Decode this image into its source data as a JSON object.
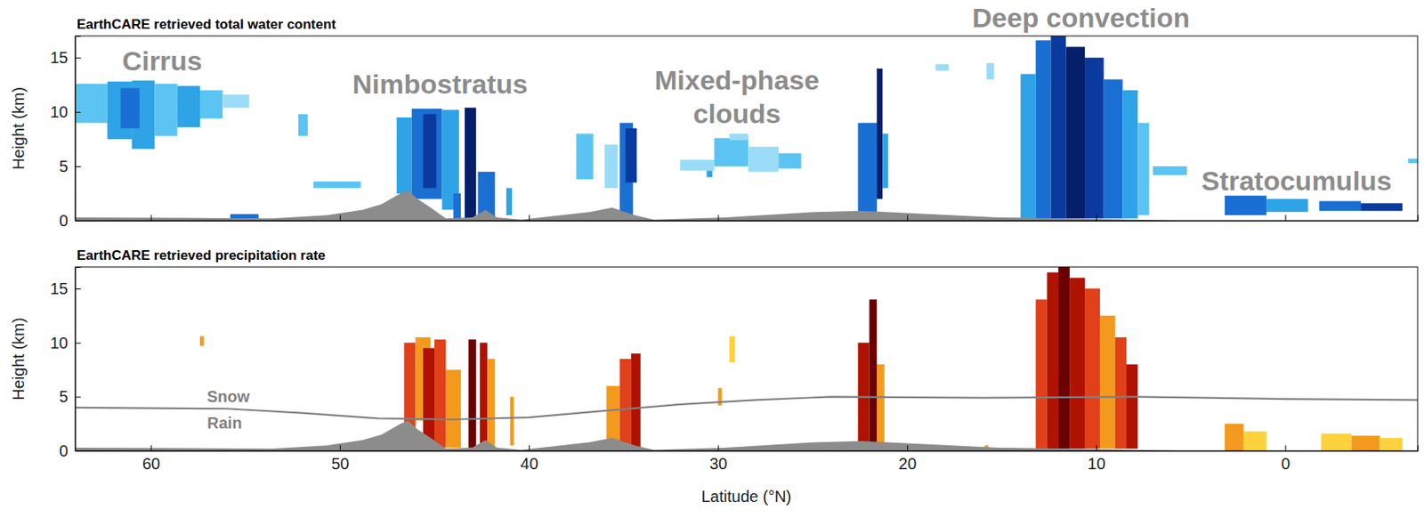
{
  "chart_data": [
    {
      "type": "curtain",
      "title": "EarthCARE retrieved total water content",
      "ylabel": "Height (km)",
      "xlim": [
        64,
        -7
      ],
      "xticks": [
        60,
        50,
        40,
        30,
        20,
        10,
        0
      ],
      "ylim": [
        0,
        17
      ],
      "yticks": [
        0,
        5,
        10,
        15
      ],
      "tick_labels": "y",
      "grid": false,
      "cells": [
        {
          "x": [
            64.0,
            62.3
          ],
          "y": [
            9.0,
            12.6
          ],
          "color": "#5cc4f2"
        },
        {
          "x": [
            62.3,
            61.0
          ],
          "y": [
            7.5,
            12.8
          ],
          "color": "#2ea3e6"
        },
        {
          "x": [
            61.0,
            59.8
          ],
          "y": [
            6.6,
            12.9
          ],
          "color": "#2ea3e6"
        },
        {
          "x": [
            61.6,
            60.6
          ],
          "y": [
            8.5,
            12.2
          ],
          "color": "#1a6fd3"
        },
        {
          "x": [
            59.8,
            58.6
          ],
          "y": [
            7.8,
            12.6
          ],
          "color": "#5cc4f2"
        },
        {
          "x": [
            58.6,
            57.4
          ],
          "y": [
            8.6,
            12.4
          ],
          "color": "#2ea3e6"
        },
        {
          "x": [
            57.4,
            56.2
          ],
          "y": [
            9.4,
            12.0
          ],
          "color": "#5cc4f2"
        },
        {
          "x": [
            56.2,
            54.8
          ],
          "y": [
            10.4,
            11.6
          ],
          "color": "#9adcf7"
        },
        {
          "x": [
            52.2,
            51.7
          ],
          "y": [
            7.8,
            9.8
          ],
          "color": "#5cc4f2"
        },
        {
          "x": [
            55.8,
            54.3
          ],
          "y": [
            0.2,
            0.6
          ],
          "color": "#1a6fd3"
        },
        {
          "x": [
            51.4,
            48.9
          ],
          "y": [
            3.0,
            3.6
          ],
          "color": "#5cc4f2"
        },
        {
          "x": [
            47.0,
            46.2
          ],
          "y": [
            2.5,
            9.5
          ],
          "color": "#2ea3e6"
        },
        {
          "x": [
            46.2,
            44.6
          ],
          "y": [
            2.0,
            10.3
          ],
          "color": "#1a6fd3"
        },
        {
          "x": [
            45.6,
            44.9
          ],
          "y": [
            3.0,
            9.8
          ],
          "color": "#0b3a9e"
        },
        {
          "x": [
            44.6,
            43.7
          ],
          "y": [
            1.0,
            10.2
          ],
          "color": "#2ea3e6"
        },
        {
          "x": [
            43.4,
            42.8
          ],
          "y": [
            0.2,
            10.4
          ],
          "color": "#061f6b"
        },
        {
          "x": [
            42.7,
            41.8
          ],
          "y": [
            0.2,
            4.5
          ],
          "color": "#1a6fd3"
        },
        {
          "x": [
            41.2,
            40.9
          ],
          "y": [
            0.5,
            3.0
          ],
          "color": "#2ea3e6"
        },
        {
          "x": [
            44.0,
            43.6
          ],
          "y": [
            0.2,
            2.5
          ],
          "color": "#1a6fd3"
        },
        {
          "x": [
            37.5,
            36.6
          ],
          "y": [
            3.8,
            8.0
          ],
          "color": "#5cc4f2"
        },
        {
          "x": [
            36.0,
            35.3
          ],
          "y": [
            3.0,
            7.0
          ],
          "color": "#9adcf7"
        },
        {
          "x": [
            35.2,
            34.5
          ],
          "y": [
            0.2,
            9.0
          ],
          "color": "#1a6fd3"
        },
        {
          "x": [
            34.9,
            34.3
          ],
          "y": [
            3.5,
            8.5
          ],
          "color": "#0b3a9e"
        },
        {
          "x": [
            32.0,
            30.2
          ],
          "y": [
            4.6,
            5.6
          ],
          "color": "#9adcf7"
        },
        {
          "x": [
            30.2,
            28.4
          ],
          "y": [
            5.0,
            7.6
          ],
          "color": "#5cc4f2"
        },
        {
          "x": [
            28.4,
            26.8
          ],
          "y": [
            4.5,
            6.8
          ],
          "color": "#9adcf7"
        },
        {
          "x": [
            26.8,
            25.6
          ],
          "y": [
            4.8,
            6.2
          ],
          "color": "#5cc4f2"
        },
        {
          "x": [
            29.4,
            28.4
          ],
          "y": [
            7.4,
            8.0
          ],
          "color": "#9adcf7"
        },
        {
          "x": [
            30.6,
            30.3
          ],
          "y": [
            4.0,
            4.6
          ],
          "color": "#2ea3e6"
        },
        {
          "x": [
            22.6,
            21.6
          ],
          "y": [
            0.8,
            9.0
          ],
          "color": "#1a6fd3"
        },
        {
          "x": [
            21.6,
            21.3
          ],
          "y": [
            2.0,
            14.0
          ],
          "color": "#061f6b"
        },
        {
          "x": [
            21.3,
            21.0
          ],
          "y": [
            3.0,
            8.0
          ],
          "color": "#2ea3e6"
        },
        {
          "x": [
            14.0,
            13.2
          ],
          "y": [
            0.2,
            13.5
          ],
          "color": "#2ea3e6"
        },
        {
          "x": [
            13.2,
            12.4
          ],
          "y": [
            0.2,
            16.6
          ],
          "color": "#1a6fd3"
        },
        {
          "x": [
            12.4,
            11.6
          ],
          "y": [
            0.2,
            17.0
          ],
          "color": "#0b3a9e"
        },
        {
          "x": [
            11.6,
            10.6
          ],
          "y": [
            0.2,
            16.0
          ],
          "color": "#061f6b"
        },
        {
          "x": [
            10.6,
            9.6
          ],
          "y": [
            0.2,
            15.0
          ],
          "color": "#0b3a9e"
        },
        {
          "x": [
            9.6,
            8.6
          ],
          "y": [
            0.2,
            13.0
          ],
          "color": "#1a6fd3"
        },
        {
          "x": [
            8.6,
            7.8
          ],
          "y": [
            0.2,
            12.0
          ],
          "color": "#2ea3e6"
        },
        {
          "x": [
            7.8,
            7.2
          ],
          "y": [
            0.5,
            9.0
          ],
          "color": "#5cc4f2"
        },
        {
          "x": [
            15.8,
            15.4
          ],
          "y": [
            13.0,
            14.5
          ],
          "color": "#9adcf7"
        },
        {
          "x": [
            18.5,
            17.8
          ],
          "y": [
            13.8,
            14.4
          ],
          "color": "#9adcf7"
        },
        {
          "x": [
            7.0,
            5.2
          ],
          "y": [
            4.2,
            5.0
          ],
          "color": "#5cc4f2"
        },
        {
          "x": [
            3.2,
            1.0
          ],
          "y": [
            0.5,
            2.3
          ],
          "color": "#1a6fd3"
        },
        {
          "x": [
            1.0,
            -1.2
          ],
          "y": [
            0.8,
            2.0
          ],
          "color": "#2ea3e6"
        },
        {
          "x": [
            -1.8,
            -4.0
          ],
          "y": [
            0.9,
            1.8
          ],
          "color": "#1a6fd3"
        },
        {
          "x": [
            -4.0,
            -6.2
          ],
          "y": [
            0.9,
            1.6
          ],
          "color": "#0b3a9e"
        },
        {
          "x": [
            -6.5,
            -7.0
          ],
          "y": [
            5.3,
            5.7
          ],
          "color": "#5cc4f2"
        }
      ],
      "surface": {
        "color": "#8c8c8c",
        "x": [
          64.0,
          58.4,
          53.6,
          50.7,
          48.8,
          47.8,
          46.8,
          46.4,
          45.9,
          45.2,
          44.4,
          43.0,
          42.3,
          41.7,
          40.4,
          36.8,
          35.6,
          34.4,
          33.4,
          29.6,
          24.8,
          22.4,
          20.0,
          15.2,
          8.0,
          5.6,
          -7.0
        ],
        "values": [
          0.3,
          0.25,
          0.2,
          0.5,
          1.0,
          1.5,
          2.5,
          2.8,
          2.0,
          1.2,
          0.2,
          0.3,
          1.0,
          0.3,
          0.1,
          0.8,
          1.2,
          0.5,
          0.1,
          0.3,
          0.8,
          0.9,
          0.7,
          0.3,
          0.1,
          0.0,
          0.0
        ]
      },
      "annotations": [
        {
          "text": "Cirrus",
          "x": 59.4,
          "y": 14.7
        },
        {
          "text": "Nimbostratus",
          "x": 44.7,
          "y": 12.6
        },
        {
          "text": [
            "Mixed-phase",
            "clouds"
          ],
          "x": 29.0,
          "y": 11.4
        },
        {
          "text": "Deep convection",
          "x": 10.8,
          "y": 18.7
        },
        {
          "text": "Stratocumulus",
          "x": -0.6,
          "y": 3.7
        }
      ]
    },
    {
      "type": "curtain",
      "title": "EarthCARE retrieved precipitation rate",
      "ylabel": "Height (km)",
      "xlabel": "Latitude (°N)",
      "xlim": [
        64,
        -7
      ],
      "xticks": [
        60,
        50,
        40,
        30,
        20,
        10,
        0
      ],
      "ylim": [
        0,
        17
      ],
      "yticks": [
        0,
        5,
        10,
        15
      ],
      "tick_labels": true,
      "grid": false,
      "cells": [
        {
          "x": [
            46.6,
            46.0
          ],
          "y": [
            0.3,
            10.0
          ],
          "color": "#e0401a"
        },
        {
          "x": [
            46.0,
            45.2
          ],
          "y": [
            2.8,
            10.5
          ],
          "color": "#f39a1e"
        },
        {
          "x": [
            45.6,
            45.0
          ],
          "y": [
            0.3,
            9.5
          ],
          "color": "#b01200"
        },
        {
          "x": [
            45.0,
            44.4
          ],
          "y": [
            0.3,
            10.3
          ],
          "color": "#e0401a"
        },
        {
          "x": [
            44.4,
            43.6
          ],
          "y": [
            0.3,
            7.5
          ],
          "color": "#f39a1e"
        },
        {
          "x": [
            43.2,
            42.8
          ],
          "y": [
            0.3,
            10.3
          ],
          "color": "#6a0000"
        },
        {
          "x": [
            42.6,
            42.2
          ],
          "y": [
            0.3,
            10.0
          ],
          "color": "#b01200"
        },
        {
          "x": [
            42.2,
            41.8
          ],
          "y": [
            0.3,
            8.5
          ],
          "color": "#f39a1e"
        },
        {
          "x": [
            41.0,
            40.8
          ],
          "y": [
            0.5,
            5.0
          ],
          "color": "#f39a1e"
        },
        {
          "x": [
            35.9,
            35.2
          ],
          "y": [
            0.3,
            6.0
          ],
          "color": "#f39a1e"
        },
        {
          "x": [
            35.2,
            34.6
          ],
          "y": [
            0.3,
            8.5
          ],
          "color": "#e0401a"
        },
        {
          "x": [
            34.6,
            34.1
          ],
          "y": [
            0.3,
            9.0
          ],
          "color": "#b01200"
        },
        {
          "x": [
            57.4,
            57.2
          ],
          "y": [
            9.7,
            10.6
          ],
          "color": "#f39a1e"
        },
        {
          "x": [
            29.4,
            29.1
          ],
          "y": [
            8.2,
            10.6
          ],
          "color": "#ffd23c"
        },
        {
          "x": [
            30.0,
            29.8
          ],
          "y": [
            4.2,
            5.8
          ],
          "color": "#f39a1e"
        },
        {
          "x": [
            22.6,
            22.0
          ],
          "y": [
            0.2,
            10.0
          ],
          "color": "#b01200"
        },
        {
          "x": [
            22.0,
            21.6
          ],
          "y": [
            0.2,
            14.0
          ],
          "color": "#6a0000"
        },
        {
          "x": [
            21.6,
            21.2
          ],
          "y": [
            0.2,
            8.0
          ],
          "color": "#f39a1e"
        },
        {
          "x": [
            13.2,
            12.6
          ],
          "y": [
            0.2,
            14.0
          ],
          "color": "#e0401a"
        },
        {
          "x": [
            12.6,
            12.0
          ],
          "y": [
            0.2,
            16.5
          ],
          "color": "#b01200"
        },
        {
          "x": [
            12.0,
            11.4
          ],
          "y": [
            0.2,
            17.0
          ],
          "color": "#6a0000"
        },
        {
          "x": [
            11.4,
            10.6
          ],
          "y": [
            0.2,
            16.0
          ],
          "color": "#b01200"
        },
        {
          "x": [
            10.6,
            9.8
          ],
          "y": [
            0.2,
            15.0
          ],
          "color": "#e0401a"
        },
        {
          "x": [
            9.8,
            9.0
          ],
          "y": [
            0.2,
            12.5
          ],
          "color": "#f39a1e"
        },
        {
          "x": [
            9.0,
            8.4
          ],
          "y": [
            0.2,
            10.5
          ],
          "color": "#e0401a"
        },
        {
          "x": [
            8.4,
            7.8
          ],
          "y": [
            0.2,
            8.0
          ],
          "color": "#b01200"
        },
        {
          "x": [
            3.2,
            2.2
          ],
          "y": [
            0.0,
            2.5
          ],
          "color": "#f39a1e"
        },
        {
          "x": [
            2.2,
            1.0
          ],
          "y": [
            0.0,
            1.8
          ],
          "color": "#ffd23c"
        },
        {
          "x": [
            -1.9,
            -3.5
          ],
          "y": [
            0.0,
            1.6
          ],
          "color": "#ffd23c"
        },
        {
          "x": [
            -3.5,
            -5.0
          ],
          "y": [
            0.0,
            1.4
          ],
          "color": "#f39a1e"
        },
        {
          "x": [
            -5.0,
            -6.2
          ],
          "y": [
            0.0,
            1.2
          ],
          "color": "#ffd23c"
        },
        {
          "x": [
            15.9,
            15.7
          ],
          "y": [
            0.0,
            0.5
          ],
          "color": "#f39a1e"
        }
      ],
      "surface": {
        "color": "#8c8c8c",
        "x": [
          64.0,
          58.4,
          53.6,
          50.7,
          48.8,
          47.8,
          46.8,
          46.4,
          45.9,
          45.2,
          44.4,
          43.0,
          42.3,
          41.7,
          40.4,
          36.8,
          35.6,
          34.4,
          33.4,
          29.6,
          24.8,
          22.4,
          20.0,
          15.2,
          8.0,
          5.6,
          -7.0
        ],
        "values": [
          0.3,
          0.25,
          0.2,
          0.5,
          1.0,
          1.5,
          2.5,
          2.8,
          2.0,
          1.2,
          0.2,
          0.3,
          1.0,
          0.3,
          0.1,
          0.8,
          1.2,
          0.5,
          0.1,
          0.3,
          0.8,
          0.9,
          0.7,
          0.3,
          0.1,
          0.0,
          0.0
        ]
      },
      "freezing_level": {
        "color": "#808080",
        "x": [
          64,
          56,
          52,
          48,
          44,
          40,
          36,
          32,
          28,
          24,
          16,
          8,
          0,
          -7
        ],
        "values": [
          4.0,
          3.9,
          3.5,
          3.0,
          2.9,
          3.1,
          3.7,
          4.3,
          4.7,
          5.0,
          4.9,
          5.0,
          4.8,
          4.7
        ],
        "labels": [
          {
            "text": "Snow",
            "x": 55.9,
            "y": 5.0
          },
          {
            "text": "Rain",
            "x": 56.1,
            "y": 2.6
          }
        ]
      }
    }
  ]
}
